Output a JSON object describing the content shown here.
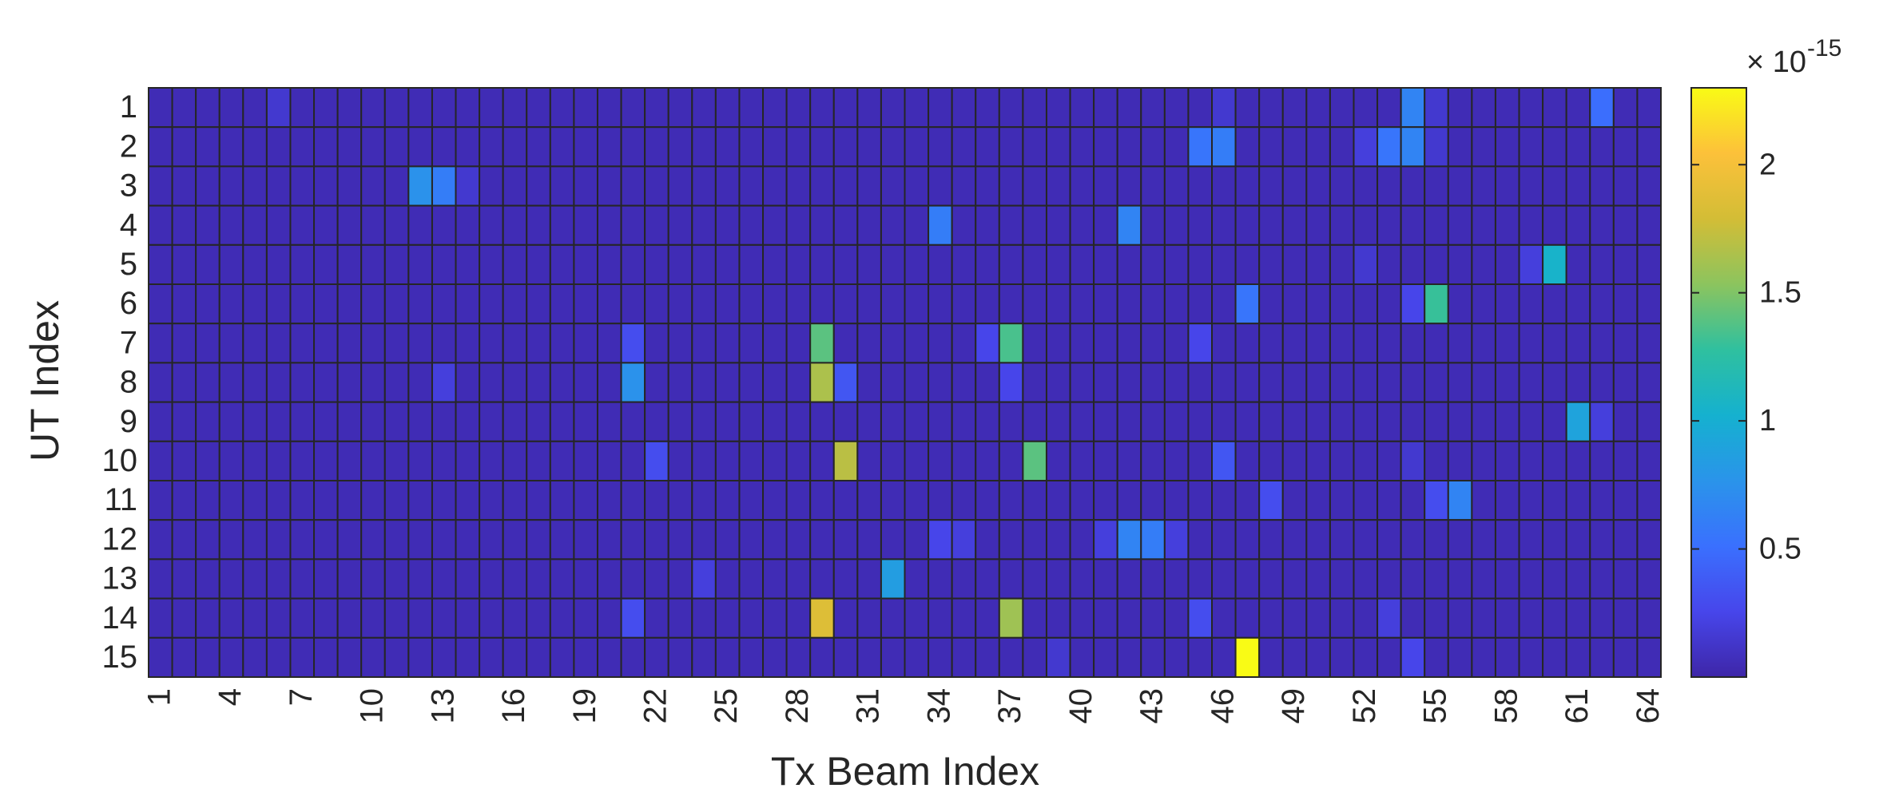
{
  "chart_data": {
    "type": "heatmap",
    "xlabel": "Tx Beam Index",
    "ylabel": "UT Index",
    "x_categories": [
      1,
      null,
      null,
      4,
      null,
      null,
      7,
      null,
      null,
      10,
      null,
      null,
      13,
      null,
      null,
      16,
      null,
      null,
      19,
      null,
      null,
      22,
      null,
      null,
      25,
      null,
      null,
      28,
      null,
      null,
      31,
      null,
      null,
      34,
      null,
      null,
      37,
      null,
      null,
      40,
      null,
      null,
      43,
      null,
      null,
      46,
      null,
      null,
      49,
      null,
      null,
      52,
      null,
      null,
      55,
      null,
      null,
      58,
      null,
      null,
      61,
      null,
      null,
      64
    ],
    "y_categories": [
      1,
      2,
      3,
      4,
      5,
      6,
      7,
      8,
      9,
      10,
      11,
      12,
      13,
      14,
      15
    ],
    "clim": [
      0,
      2.3
    ],
    "cticks": [
      0.5,
      1,
      1.5,
      2
    ],
    "colorbar_multiplier": "× 10",
    "colorbar_exponent": "-15",
    "colormap": [
      "#3e26a8",
      "#4746eb",
      "#3a70fe",
      "#2a94ea",
      "#15b1cf",
      "#2fc09f",
      "#8cc45e",
      "#d3bd36",
      "#fcc13a",
      "#f9fb15"
    ],
    "values": [
      [
        0.05,
        0.05,
        0.05,
        0.05,
        0.05,
        0.15,
        0.05,
        0.05,
        0.05,
        0.05,
        0.05,
        0.05,
        0.05,
        0.05,
        0.05,
        0.05,
        0.05,
        0.05,
        0.05,
        0.05,
        0.05,
        0.05,
        0.05,
        0.05,
        0.05,
        0.05,
        0.05,
        0.05,
        0.05,
        0.05,
        0.05,
        0.05,
        0.05,
        0.05,
        0.05,
        0.05,
        0.05,
        0.05,
        0.05,
        0.05,
        0.05,
        0.05,
        0.05,
        0.05,
        0.05,
        0.15,
        0.05,
        0.05,
        0.05,
        0.05,
        0.05,
        0.05,
        0.05,
        0.65,
        0.15,
        0.05,
        0.05,
        0.05,
        0.05,
        0.05,
        0.05,
        0.5,
        0.05,
        0.05
      ],
      [
        0.05,
        0.05,
        0.05,
        0.05,
        0.05,
        0.05,
        0.05,
        0.05,
        0.05,
        0.05,
        0.05,
        0.05,
        0.05,
        0.05,
        0.05,
        0.05,
        0.05,
        0.05,
        0.05,
        0.05,
        0.05,
        0.05,
        0.05,
        0.05,
        0.05,
        0.05,
        0.05,
        0.05,
        0.05,
        0.05,
        0.05,
        0.05,
        0.05,
        0.05,
        0.05,
        0.05,
        0.05,
        0.05,
        0.05,
        0.05,
        0.05,
        0.05,
        0.05,
        0.05,
        0.55,
        0.6,
        0.05,
        0.05,
        0.05,
        0.05,
        0.05,
        0.2,
        0.55,
        0.65,
        0.15,
        0.05,
        0.05,
        0.05,
        0.05,
        0.05,
        0.05,
        0.05,
        0.05,
        0.05
      ],
      [
        0.05,
        0.05,
        0.05,
        0.05,
        0.05,
        0.05,
        0.05,
        0.05,
        0.05,
        0.05,
        0.05,
        0.75,
        0.6,
        0.15,
        0.05,
        0.05,
        0.05,
        0.05,
        0.05,
        0.05,
        0.05,
        0.05,
        0.05,
        0.05,
        0.05,
        0.05,
        0.05,
        0.05,
        0.05,
        0.05,
        0.05,
        0.05,
        0.05,
        0.05,
        0.05,
        0.05,
        0.05,
        0.05,
        0.05,
        0.05,
        0.05,
        0.05,
        0.05,
        0.05,
        0.05,
        0.05,
        0.05,
        0.05,
        0.05,
        0.05,
        0.05,
        0.05,
        0.05,
        0.05,
        0.05,
        0.05,
        0.05,
        0.05,
        0.05,
        0.05,
        0.05,
        0.05,
        0.05,
        0.05
      ],
      [
        0.05,
        0.05,
        0.05,
        0.05,
        0.05,
        0.05,
        0.05,
        0.05,
        0.05,
        0.05,
        0.05,
        0.05,
        0.05,
        0.05,
        0.05,
        0.05,
        0.05,
        0.05,
        0.05,
        0.05,
        0.05,
        0.05,
        0.05,
        0.05,
        0.05,
        0.05,
        0.05,
        0.05,
        0.05,
        0.05,
        0.05,
        0.05,
        0.05,
        0.6,
        0.05,
        0.05,
        0.05,
        0.05,
        0.05,
        0.05,
        0.05,
        0.65,
        0.05,
        0.05,
        0.05,
        0.05,
        0.05,
        0.05,
        0.05,
        0.05,
        0.05,
        0.05,
        0.05,
        0.05,
        0.05,
        0.05,
        0.05,
        0.05,
        0.05,
        0.05,
        0.05,
        0.05,
        0.05,
        0.05
      ],
      [
        0.05,
        0.05,
        0.05,
        0.05,
        0.05,
        0.05,
        0.05,
        0.05,
        0.05,
        0.05,
        0.05,
        0.05,
        0.05,
        0.05,
        0.05,
        0.05,
        0.05,
        0.05,
        0.05,
        0.05,
        0.05,
        0.05,
        0.05,
        0.05,
        0.05,
        0.05,
        0.05,
        0.05,
        0.05,
        0.05,
        0.05,
        0.05,
        0.05,
        0.05,
        0.05,
        0.05,
        0.05,
        0.05,
        0.05,
        0.05,
        0.05,
        0.05,
        0.05,
        0.05,
        0.05,
        0.05,
        0.05,
        0.05,
        0.05,
        0.05,
        0.05,
        0.15,
        0.05,
        0.05,
        0.05,
        0.05,
        0.05,
        0.05,
        0.2,
        1.05,
        0.05,
        0.05,
        0.05,
        0.05
      ],
      [
        0.05,
        0.05,
        0.05,
        0.05,
        0.05,
        0.05,
        0.05,
        0.05,
        0.05,
        0.05,
        0.05,
        0.05,
        0.05,
        0.05,
        0.05,
        0.05,
        0.05,
        0.05,
        0.05,
        0.05,
        0.05,
        0.05,
        0.05,
        0.05,
        0.05,
        0.05,
        0.05,
        0.05,
        0.05,
        0.05,
        0.05,
        0.05,
        0.05,
        0.05,
        0.05,
        0.05,
        0.05,
        0.05,
        0.05,
        0.05,
        0.05,
        0.05,
        0.05,
        0.05,
        0.05,
        0.05,
        0.55,
        0.05,
        0.05,
        0.05,
        0.05,
        0.05,
        0.05,
        0.25,
        1.3,
        0.05,
        0.05,
        0.05,
        0.05,
        0.05,
        0.05,
        0.05,
        0.05,
        0.05
      ],
      [
        0.05,
        0.05,
        0.05,
        0.05,
        0.05,
        0.05,
        0.05,
        0.05,
        0.05,
        0.05,
        0.05,
        0.05,
        0.05,
        0.05,
        0.05,
        0.05,
        0.05,
        0.05,
        0.05,
        0.05,
        0.3,
        0.05,
        0.05,
        0.05,
        0.05,
        0.05,
        0.05,
        0.05,
        1.4,
        0.05,
        0.05,
        0.05,
        0.05,
        0.05,
        0.05,
        0.25,
        1.35,
        0.05,
        0.05,
        0.05,
        0.05,
        0.05,
        0.05,
        0.05,
        0.25,
        0.05,
        0.05,
        0.05,
        0.05,
        0.05,
        0.05,
        0.05,
        0.05,
        0.05,
        0.05,
        0.05,
        0.05,
        0.05,
        0.05,
        0.05,
        0.05,
        0.05,
        0.05,
        0.05
      ],
      [
        0.05,
        0.05,
        0.05,
        0.05,
        0.05,
        0.05,
        0.05,
        0.05,
        0.05,
        0.05,
        0.05,
        0.05,
        0.2,
        0.05,
        0.05,
        0.05,
        0.05,
        0.05,
        0.05,
        0.05,
        0.75,
        0.05,
        0.05,
        0.05,
        0.05,
        0.05,
        0.05,
        0.05,
        1.65,
        0.35,
        0.05,
        0.05,
        0.05,
        0.05,
        0.05,
        0.05,
        0.25,
        0.05,
        0.05,
        0.05,
        0.05,
        0.05,
        0.05,
        0.05,
        0.05,
        0.05,
        0.05,
        0.05,
        0.05,
        0.05,
        0.05,
        0.05,
        0.05,
        0.05,
        0.05,
        0.05,
        0.05,
        0.05,
        0.05,
        0.05,
        0.05,
        0.05,
        0.05,
        0.05
      ],
      [
        0.05,
        0.05,
        0.05,
        0.05,
        0.05,
        0.05,
        0.05,
        0.05,
        0.05,
        0.05,
        0.05,
        0.05,
        0.05,
        0.05,
        0.05,
        0.05,
        0.05,
        0.05,
        0.05,
        0.05,
        0.05,
        0.05,
        0.05,
        0.05,
        0.05,
        0.05,
        0.05,
        0.05,
        0.05,
        0.05,
        0.05,
        0.05,
        0.05,
        0.05,
        0.05,
        0.05,
        0.05,
        0.05,
        0.05,
        0.05,
        0.05,
        0.05,
        0.05,
        0.05,
        0.05,
        0.05,
        0.05,
        0.05,
        0.05,
        0.05,
        0.05,
        0.05,
        0.05,
        0.05,
        0.05,
        0.05,
        0.05,
        0.05,
        0.05,
        0.05,
        0.9,
        0.2,
        0.05,
        0.05
      ],
      [
        0.05,
        0.05,
        0.05,
        0.05,
        0.05,
        0.05,
        0.05,
        0.05,
        0.05,
        0.05,
        0.05,
        0.05,
        0.05,
        0.05,
        0.05,
        0.05,
        0.05,
        0.05,
        0.05,
        0.05,
        0.05,
        0.3,
        0.05,
        0.05,
        0.05,
        0.05,
        0.05,
        0.05,
        0.05,
        1.7,
        0.05,
        0.05,
        0.05,
        0.05,
        0.05,
        0.05,
        0.05,
        1.4,
        0.05,
        0.05,
        0.05,
        0.05,
        0.05,
        0.05,
        0.05,
        0.35,
        0.05,
        0.05,
        0.05,
        0.05,
        0.05,
        0.05,
        0.05,
        0.15,
        0.05,
        0.05,
        0.05,
        0.05,
        0.05,
        0.05,
        0.05,
        0.05,
        0.05,
        0.05
      ],
      [
        0.05,
        0.05,
        0.05,
        0.05,
        0.05,
        0.05,
        0.05,
        0.05,
        0.05,
        0.05,
        0.05,
        0.05,
        0.05,
        0.05,
        0.05,
        0.05,
        0.05,
        0.05,
        0.05,
        0.05,
        0.05,
        0.05,
        0.05,
        0.05,
        0.05,
        0.05,
        0.05,
        0.05,
        0.05,
        0.05,
        0.05,
        0.05,
        0.05,
        0.05,
        0.05,
        0.05,
        0.05,
        0.05,
        0.05,
        0.05,
        0.05,
        0.05,
        0.05,
        0.05,
        0.05,
        0.05,
        0.05,
        0.3,
        0.05,
        0.05,
        0.05,
        0.05,
        0.05,
        0.05,
        0.3,
        0.65,
        0.05,
        0.05,
        0.05,
        0.05,
        0.05,
        0.05,
        0.05,
        0.05
      ],
      [
        0.05,
        0.05,
        0.05,
        0.05,
        0.05,
        0.05,
        0.05,
        0.05,
        0.05,
        0.05,
        0.05,
        0.05,
        0.05,
        0.05,
        0.05,
        0.05,
        0.05,
        0.05,
        0.05,
        0.05,
        0.05,
        0.05,
        0.05,
        0.05,
        0.05,
        0.05,
        0.05,
        0.05,
        0.05,
        0.05,
        0.05,
        0.05,
        0.05,
        0.25,
        0.2,
        0.05,
        0.05,
        0.05,
        0.05,
        0.05,
        0.2,
        0.65,
        0.6,
        0.2,
        0.05,
        0.05,
        0.05,
        0.05,
        0.05,
        0.05,
        0.05,
        0.05,
        0.05,
        0.05,
        0.05,
        0.05,
        0.05,
        0.05,
        0.05,
        0.05,
        0.05,
        0.05,
        0.05,
        0.05
      ],
      [
        0.05,
        0.05,
        0.05,
        0.05,
        0.05,
        0.05,
        0.05,
        0.05,
        0.05,
        0.05,
        0.05,
        0.05,
        0.05,
        0.05,
        0.05,
        0.05,
        0.05,
        0.05,
        0.05,
        0.05,
        0.05,
        0.05,
        0.05,
        0.2,
        0.05,
        0.05,
        0.05,
        0.05,
        0.05,
        0.05,
        0.05,
        0.85,
        0.05,
        0.05,
        0.05,
        0.05,
        0.05,
        0.05,
        0.05,
        0.05,
        0.05,
        0.05,
        0.05,
        0.05,
        0.05,
        0.05,
        0.05,
        0.05,
        0.05,
        0.05,
        0.05,
        0.05,
        0.05,
        0.05,
        0.05,
        0.05,
        0.05,
        0.05,
        0.05,
        0.05,
        0.05,
        0.05,
        0.05,
        0.05
      ],
      [
        0.05,
        0.05,
        0.05,
        0.05,
        0.05,
        0.05,
        0.05,
        0.05,
        0.05,
        0.05,
        0.05,
        0.05,
        0.05,
        0.05,
        0.05,
        0.05,
        0.05,
        0.05,
        0.05,
        0.05,
        0.3,
        0.05,
        0.05,
        0.05,
        0.05,
        0.05,
        0.05,
        0.05,
        1.85,
        0.05,
        0.05,
        0.05,
        0.05,
        0.05,
        0.05,
        0.05,
        1.6,
        0.05,
        0.05,
        0.05,
        0.05,
        0.05,
        0.05,
        0.05,
        0.3,
        0.05,
        0.05,
        0.05,
        0.05,
        0.05,
        0.05,
        0.05,
        0.2,
        0.05,
        0.05,
        0.05,
        0.05,
        0.05,
        0.05,
        0.05,
        0.05,
        0.05,
        0.05,
        0.05
      ],
      [
        0.05,
        0.05,
        0.05,
        0.05,
        0.05,
        0.05,
        0.05,
        0.05,
        0.05,
        0.05,
        0.05,
        0.05,
        0.05,
        0.05,
        0.05,
        0.05,
        0.05,
        0.05,
        0.05,
        0.05,
        0.05,
        0.05,
        0.05,
        0.05,
        0.05,
        0.05,
        0.05,
        0.05,
        0.05,
        0.05,
        0.05,
        0.05,
        0.05,
        0.05,
        0.05,
        0.05,
        0.05,
        0.05,
        0.15,
        0.05,
        0.05,
        0.05,
        0.05,
        0.05,
        0.05,
        0.05,
        2.3,
        0.05,
        0.05,
        0.05,
        0.05,
        0.05,
        0.05,
        0.25,
        0.05,
        0.05,
        0.05,
        0.05,
        0.05,
        0.05,
        0.05,
        0.05,
        0.05,
        0.05
      ]
    ]
  }
}
